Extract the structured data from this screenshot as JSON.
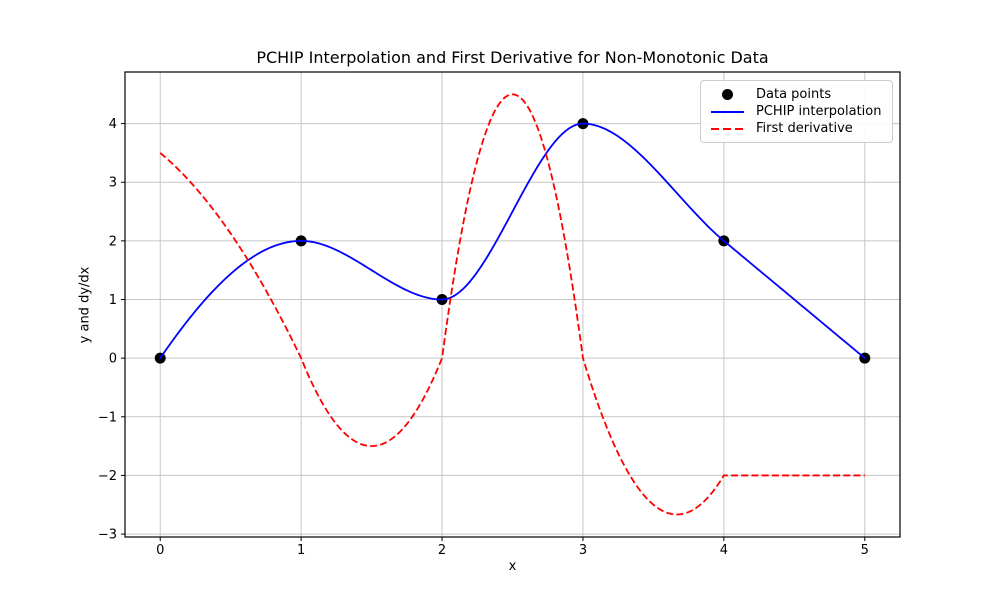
{
  "figure": {
    "background": "#ffffff",
    "spine_color": "#000000",
    "tick_label_color": "#000000"
  },
  "chart_data": {
    "type": "line",
    "title": "PCHIP Interpolation and First Derivative for Non-Monotonic Data",
    "xlabel": "x",
    "ylabel": "y and dy/dx",
    "xlim": [
      -0.25,
      5.25
    ],
    "ylim": [
      -3.05,
      4.88
    ],
    "x_ticks": [
      0,
      1,
      2,
      3,
      4,
      5
    ],
    "y_ticks": [
      -3,
      -2,
      -1,
      0,
      1,
      2,
      3,
      4
    ],
    "grid": true,
    "grid_color": "#c6c6c6",
    "data_points": {
      "x": [
        0,
        1,
        2,
        3,
        4,
        5
      ],
      "y": [
        0,
        2,
        1,
        4,
        2,
        0
      ]
    },
    "pchip_knot_derivatives": [
      3.5,
      0,
      0,
      0,
      -2,
      -2
    ],
    "derivative_key_features": {
      "start_value_at_x0": 3.5,
      "local_min_1": {
        "x": 1.5,
        "value": -1.5
      },
      "peak": {
        "x": 2.5,
        "value": 4.5
      },
      "local_min_2": {
        "x": 3.67,
        "value": -2.67
      },
      "constant_tail_x4_to_x5": -2
    },
    "series": [
      {
        "name": "Data points",
        "type": "scatter",
        "color": "#000000",
        "marker": "circle",
        "marker_radius_px": 5.5
      },
      {
        "name": "PCHIP interpolation",
        "type": "line",
        "color": "#0000ff",
        "style": "solid"
      },
      {
        "name": "First derivative",
        "type": "line",
        "color": "#ff0000",
        "style": "dashed"
      }
    ],
    "legend": {
      "position": "upper right",
      "entries": [
        {
          "label": "Data points",
          "handle": "black-circle-marker"
        },
        {
          "label": "PCHIP interpolation",
          "handle": "blue-solid-line"
        },
        {
          "label": "First derivative",
          "handle": "red-dashed-line"
        }
      ]
    }
  }
}
